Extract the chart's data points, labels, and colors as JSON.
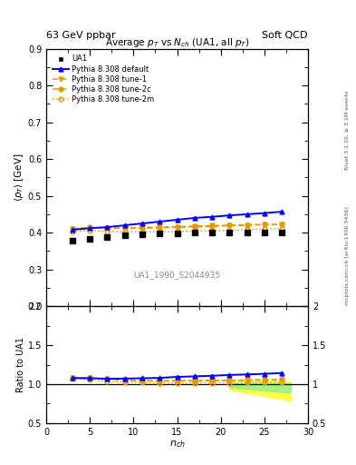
{
  "title_top": "63 GeV ppbar",
  "title_top_right": "Soft QCD",
  "title_main": "Average $p_T$ vs $N_{ch}$ (UA1, all $p_T$)",
  "ylabel_main": "$\\langle p_T \\rangle$ [GeV]",
  "ylabel_ratio": "Ratio to UA1",
  "xlabel": "$n_{ch}$",
  "ylim_main": [
    0.2,
    0.9
  ],
  "ylim_ratio": [
    0.5,
    2.0
  ],
  "right_label1": "Rivet 3.1.10, ≥ 3.1M events",
  "right_label2": "mcplots.cern.ch [arXiv:1306.3436]",
  "watermark": "UA1_1990_S2044935",
  "ua1_x": [
    3,
    5,
    7,
    9,
    11,
    13,
    15,
    17,
    19,
    21,
    23,
    25,
    27
  ],
  "ua1_y": [
    0.378,
    0.383,
    0.388,
    0.392,
    0.395,
    0.398,
    0.398,
    0.4,
    0.4,
    0.4,
    0.4,
    0.4,
    0.4
  ],
  "default_x": [
    3,
    5,
    7,
    9,
    11,
    13,
    15,
    17,
    19,
    21,
    23,
    25,
    27
  ],
  "default_y": [
    0.408,
    0.412,
    0.415,
    0.42,
    0.425,
    0.43,
    0.435,
    0.44,
    0.443,
    0.447,
    0.45,
    0.453,
    0.457
  ],
  "tune1_x": [
    3,
    5,
    7,
    9,
    11,
    13,
    15,
    17,
    19,
    21,
    23,
    25,
    27
  ],
  "tune1_y": [
    0.41,
    0.413,
    0.413,
    0.413,
    0.414,
    0.415,
    0.416,
    0.418,
    0.419,
    0.42,
    0.421,
    0.422,
    0.422
  ],
  "tune2c_x": [
    3,
    5,
    7,
    9,
    11,
    13,
    15,
    17,
    19,
    21,
    23,
    25,
    27
  ],
  "tune2c_y": [
    0.41,
    0.415,
    0.413,
    0.412,
    0.412,
    0.413,
    0.415,
    0.416,
    0.417,
    0.419,
    0.42,
    0.422,
    0.422
  ],
  "tune2m_x": [
    3,
    5,
    7,
    9,
    11,
    13,
    15,
    17,
    19,
    21,
    23,
    25,
    27
  ],
  "tune2m_y": [
    0.403,
    0.406,
    0.403,
    0.402,
    0.402,
    0.402,
    0.403,
    0.404,
    0.405,
    0.406,
    0.408,
    0.41,
    0.411
  ],
  "color_default": "#0000ff",
  "color_tune1": "#e69900",
  "color_tune2c": "#e69900",
  "color_tune2m": "#e69900",
  "color_ua1": "#000000",
  "band_green_x": [
    21,
    22,
    23,
    24,
    25,
    26,
    27,
    28
  ],
  "band_green_lo": [
    0.96,
    0.95,
    0.94,
    0.93,
    0.92,
    0.91,
    0.9,
    0.89
  ],
  "band_green_hi": [
    1.01,
    1.01,
    1.01,
    1.01,
    1.01,
    1.01,
    1.01,
    1.01
  ],
  "band_yellow_x": [
    21,
    22,
    23,
    24,
    25,
    26,
    27,
    28
  ],
  "band_yellow_lo": [
    0.93,
    0.91,
    0.89,
    0.87,
    0.85,
    0.83,
    0.81,
    0.79
  ],
  "band_yellow_hi": [
    1.03,
    1.03,
    1.03,
    1.03,
    1.03,
    1.03,
    1.03,
    1.03
  ]
}
